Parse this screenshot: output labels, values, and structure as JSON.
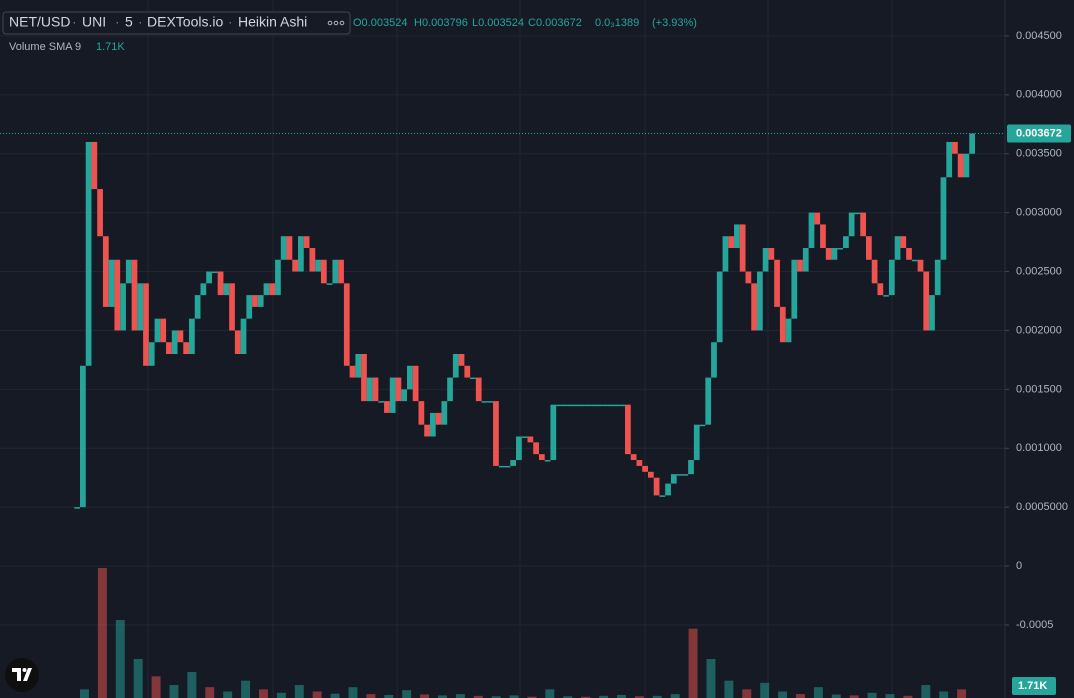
{
  "header": {
    "symbol": "NET/USD",
    "exchange": "UNI",
    "interval": "5",
    "source": "DEXTools.io",
    "style": "Heikin Ashi",
    "open": "O0.003524",
    "high": "H0.003796",
    "low": "L0.003524",
    "close": "C0.003672",
    "change": "0.0₃1389",
    "change_pct": "(+3.93%)"
  },
  "chart_data": {
    "type": "candle-trace",
    "up_color": "#26a69a",
    "down_color": "#ef5350",
    "grid": true,
    "ylim": [
      -0.00112,
      0.004805
    ],
    "yticks": [
      {
        "value": 0.0045,
        "label": "0.004500"
      },
      {
        "value": 0.004,
        "label": "0.004000"
      },
      {
        "value": 0.0035,
        "label": "0.003500"
      },
      {
        "value": 0.003,
        "label": "0.003000"
      },
      {
        "value": 0.0025,
        "label": "0.002500"
      },
      {
        "value": 0.002,
        "label": "0.002000"
      },
      {
        "value": 0.0015,
        "label": "0.001500"
      },
      {
        "value": 0.001,
        "label": "0.001000"
      },
      {
        "value": 0.0005,
        "label": "0.0005000"
      },
      0,
      -0.0005
    ],
    "last_price": {
      "value": 0.003672,
      "label": "0.003672"
    },
    "values": [
      0.0005,
      0.0017,
      0.0036,
      0.0032,
      0.0028,
      0.0022,
      0.0026,
      0.002,
      0.0024,
      0.0026,
      0.002,
      0.0024,
      0.0017,
      0.0019,
      0.0021,
      0.0019,
      0.0018,
      0.002,
      0.0019,
      0.0018,
      0.0021,
      0.0023,
      0.0024,
      0.0025,
      0.0025,
      0.0023,
      0.0024,
      0.002,
      0.0018,
      0.0021,
      0.0023,
      0.0022,
      0.0023,
      0.0024,
      0.0023,
      0.0026,
      0.0028,
      0.0026,
      0.0025,
      0.0028,
      0.0027,
      0.0025,
      0.0026,
      0.0024,
      0.0024,
      0.0026,
      0.0024,
      0.0017,
      0.0016,
      0.0018,
      0.0014,
      0.0016,
      0.0014,
      0.0014,
      0.0013,
      0.0016,
      0.0014,
      0.0015,
      0.0017,
      0.0014,
      0.0012,
      0.0011,
      0.0013,
      0.0012,
      0.0014,
      0.0016,
      0.0018,
      0.0017,
      0.0016,
      0.0016,
      0.0014,
      0.0014,
      0.0014,
      0.00085,
      0.00085,
      0.00085,
      0.0009,
      0.0011,
      0.0011,
      0.00105,
      0.00095,
      0.0009,
      0.0009,
      0.00137,
      0.00137,
      0.00137,
      0.00137,
      0.00137,
      0.00137,
      0.00137,
      0.00137,
      0.00137,
      0.00137,
      0.00137,
      0.00137,
      0.00137,
      0.00095,
      0.0009,
      0.00085,
      0.0008,
      0.00075,
      0.0006,
      0.0006,
      0.0007,
      0.00078,
      0.00078,
      0.00078,
      0.0009,
      0.0012,
      0.0012,
      0.0016,
      0.0019,
      0.0025,
      0.0028,
      0.0027,
      0.0029,
      0.0025,
      0.0024,
      0.002,
      0.0025,
      0.0027,
      0.0026,
      0.0022,
      0.0019,
      0.0021,
      0.0026,
      0.0025,
      0.0027,
      0.003,
      0.0029,
      0.0027,
      0.0026,
      0.0027,
      0.0027,
      0.0028,
      0.003,
      0.003,
      0.0028,
      0.0026,
      0.0024,
      0.0023,
      0.0023,
      0.0026,
      0.0028,
      0.0027,
      0.0026,
      0.0026,
      0.0025,
      0.002,
      0.0023,
      0.0026,
      0.0033,
      0.0036,
      0.0035,
      0.0033,
      0.0035,
      0.003672
    ],
    "volume": {
      "label": "Volume SMA 9",
      "sma": 1710,
      "sma_label": "1.71K",
      "values": [
        2000,
        30000,
        18000,
        9000,
        5000,
        3000,
        6000,
        2500,
        1500,
        4000,
        2000,
        1200,
        3000,
        1500,
        1000,
        2500,
        900,
        700,
        1800,
        800,
        600,
        900,
        500,
        400,
        600,
        300,
        2000,
        400,
        300,
        500,
        700,
        400,
        500,
        900,
        16000,
        9000,
        4000,
        2000,
        3500,
        1500,
        900,
        2500,
        800,
        600,
        1200,
        900,
        500,
        3000,
        1500,
        2000
      ]
    }
  }
}
